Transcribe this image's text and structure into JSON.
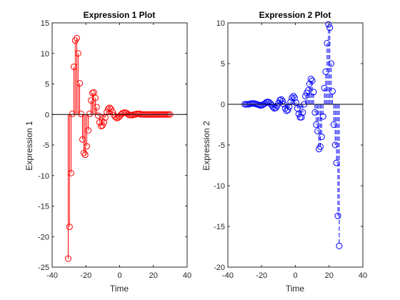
{
  "colors": {
    "background": "#ffffff",
    "axes_frame": "#262626",
    "baseline": "#000000",
    "red_series": "#ff0000",
    "blue_series": "#0000ff"
  },
  "chart_data": [
    {
      "type": "stem",
      "title": "Expression 1 Plot",
      "xlabel": "Time",
      "ylabel": "Expression 1",
      "xlim": [
        -40,
        40
      ],
      "ylim": [
        -25,
        15
      ],
      "xticks": [
        -40,
        -20,
        0,
        20,
        40
      ],
      "yticks": [
        -25,
        -20,
        -15,
        -10,
        -5,
        0,
        5,
        10,
        15
      ],
      "xtick_labels": [
        "-40",
        "-20",
        "0",
        "20",
        "40"
      ],
      "ytick_labels": [
        "-25",
        "-20",
        "-15",
        "-10",
        "-5",
        "0",
        "5",
        "10",
        "15"
      ],
      "grid": false,
      "baseline": 0,
      "series": [
        {
          "color": "#ff0000",
          "linestyle": "solid",
          "marker": "circle",
          "points": [
            [
              -30.5,
              -23.6
            ],
            [
              -29.7,
              -18.4
            ],
            [
              -28.8,
              -9.6
            ],
            [
              -28,
              0.1
            ],
            [
              -27.1,
              7.8
            ],
            [
              -26.3,
              12.1
            ],
            [
              -25.4,
              12.5
            ],
            [
              -24.6,
              10.0
            ],
            [
              -23.7,
              5.1
            ],
            [
              -22.9,
              0.1
            ],
            [
              -22.0,
              -4.1
            ],
            [
              -21.2,
              -6.3
            ],
            [
              -20.4,
              -6.6
            ],
            [
              -19.5,
              -5.2
            ],
            [
              -18.6,
              -2.6
            ],
            [
              -17.8,
              0.1
            ],
            [
              -16.9,
              2.3
            ],
            [
              -16.1,
              3.5
            ],
            [
              -15.3,
              3.6
            ],
            [
              -14.4,
              2.7
            ],
            [
              -13.6,
              1.2
            ],
            [
              -12.7,
              -0.2
            ],
            [
              -11.9,
              -1.3
            ],
            [
              -11.0,
              -1.9
            ],
            [
              -10.2,
              -1.8
            ],
            [
              -9.3,
              -1.3
            ],
            [
              -8.5,
              -0.5
            ],
            [
              -7.6,
              0.4
            ],
            [
              -6.8,
              0.9
            ],
            [
              -5.9,
              1.1
            ],
            [
              -5.1,
              0.9
            ],
            [
              -4.2,
              0.4
            ],
            [
              -3.4,
              -0.1
            ],
            [
              -2.5,
              -0.4
            ],
            [
              -1.7,
              -0.6
            ],
            [
              -0.8,
              -0.5
            ],
            [
              0.0,
              -0.3
            ],
            [
              0.9,
              0.0
            ],
            [
              1.7,
              0.2
            ],
            [
              2.6,
              0.3
            ],
            [
              3.4,
              0.3
            ],
            [
              4.3,
              0.2
            ],
            [
              5.1,
              0.0
            ],
            [
              6.0,
              -0.1
            ],
            [
              6.8,
              -0.1
            ],
            [
              7.7,
              -0.1
            ],
            [
              8.5,
              0.0
            ],
            [
              9.4,
              0.0
            ],
            [
              10.2,
              0.1
            ],
            [
              11.1,
              0.1
            ],
            [
              11.9,
              0.1
            ],
            [
              12.8,
              0.0
            ],
            [
              13.6,
              0.0
            ],
            [
              14.5,
              0.0
            ],
            [
              15.3,
              0.0
            ],
            [
              16.2,
              0.0
            ],
            [
              17.0,
              0.0
            ],
            [
              17.9,
              0.0
            ],
            [
              18.7,
              0.0
            ],
            [
              19.6,
              0.0
            ],
            [
              20.4,
              0.0
            ],
            [
              21.3,
              0.0
            ],
            [
              22.1,
              0.0
            ],
            [
              23.0,
              0.0
            ],
            [
              23.8,
              0.0
            ],
            [
              24.7,
              0.0
            ],
            [
              25.5,
              0.0
            ],
            [
              26.4,
              0.0
            ],
            [
              27.2,
              0.0
            ],
            [
              28.1,
              0.0
            ],
            [
              28.9,
              0.0
            ],
            [
              29.8,
              0.0
            ]
          ]
        }
      ]
    },
    {
      "type": "stem",
      "title": "Expression 2 Plot",
      "xlabel": "Time",
      "ylabel": "Expression 2",
      "xlim": [
        -40,
        40
      ],
      "ylim": [
        -20,
        10
      ],
      "xticks": [
        -40,
        -20,
        0,
        20,
        40
      ],
      "yticks": [
        -20,
        -15,
        -10,
        -5,
        0,
        5,
        10
      ],
      "xtick_labels": [
        "-40",
        "-20",
        "0",
        "20",
        "40"
      ],
      "ytick_labels": [
        "-20",
        "-15",
        "-10",
        "-5",
        "0",
        "5",
        "10"
      ],
      "grid": false,
      "baseline": 0,
      "series": [
        {
          "color": "#0000ff",
          "linestyle": "dashed",
          "marker": "circle",
          "points": [
            [
              -30.0,
              0.0
            ],
            [
              -29.2,
              0.0
            ],
            [
              -28.4,
              0.0
            ],
            [
              -27.6,
              0.0
            ],
            [
              -26.8,
              0.05
            ],
            [
              -26.0,
              0.1
            ],
            [
              -25.2,
              0.1
            ],
            [
              -24.4,
              0.1
            ],
            [
              -23.6,
              0.05
            ],
            [
              -22.8,
              0.0
            ],
            [
              -22.0,
              -0.05
            ],
            [
              -21.2,
              -0.1
            ],
            [
              -20.4,
              -0.15
            ],
            [
              -19.6,
              -0.1
            ],
            [
              -18.8,
              0.0
            ],
            [
              -18.0,
              0.1
            ],
            [
              -17.2,
              0.25
            ],
            [
              -16.4,
              0.3
            ],
            [
              -15.6,
              0.25
            ],
            [
              -14.8,
              0.1
            ],
            [
              -14.0,
              -0.1
            ],
            [
              -13.2,
              -0.35
            ],
            [
              -12.4,
              -0.5
            ],
            [
              -11.6,
              -0.45
            ],
            [
              -10.8,
              -0.2
            ],
            [
              -10.0,
              0.15
            ],
            [
              -9.2,
              0.5
            ],
            [
              -8.4,
              0.6
            ],
            [
              -7.6,
              0.4
            ],
            [
              -6.8,
              0.0
            ],
            [
              -6.0,
              -0.5
            ],
            [
              -5.2,
              -0.8
            ],
            [
              -4.4,
              -0.7
            ],
            [
              -3.6,
              -0.3
            ],
            [
              -2.8,
              0.3
            ],
            [
              -2.0,
              0.8
            ],
            [
              -1.2,
              1.0
            ],
            [
              -0.4,
              0.8
            ],
            [
              0.4,
              0.2
            ],
            [
              1.2,
              -0.5
            ],
            [
              2.0,
              -1.2
            ],
            [
              2.8,
              -1.6
            ],
            [
              3.6,
              -1.6
            ],
            [
              4.4,
              -1.0
            ],
            [
              5.2,
              0.0
            ],
            [
              6.0,
              1.0
            ],
            [
              6.8,
              1.4
            ],
            [
              7.6,
              1.7
            ],
            [
              8.4,
              2.5
            ],
            [
              9.2,
              3.1
            ],
            [
              10.0,
              2.9
            ],
            [
              10.8,
              1.5
            ],
            [
              11.6,
              -1.0
            ],
            [
              12.4,
              -2.5
            ],
            [
              13.2,
              -3.3
            ],
            [
              14.0,
              -5.5
            ],
            [
              14.8,
              -5.2
            ],
            [
              15.6,
              -4.0
            ],
            [
              16.4,
              -1.5
            ],
            [
              17.2,
              2.0
            ],
            [
              18.0,
              4.0
            ],
            [
              18.8,
              7.5
            ],
            [
              19.6,
              9.8
            ],
            [
              20.4,
              9.4
            ],
            [
              21.2,
              5.0
            ],
            [
              22.0,
              1.6
            ],
            [
              22.8,
              -2.5
            ],
            [
              23.6,
              -5.0
            ],
            [
              24.4,
              -7.2
            ],
            [
              25.2,
              -13.7
            ],
            [
              26.0,
              -17.4
            ]
          ]
        }
      ]
    }
  ]
}
